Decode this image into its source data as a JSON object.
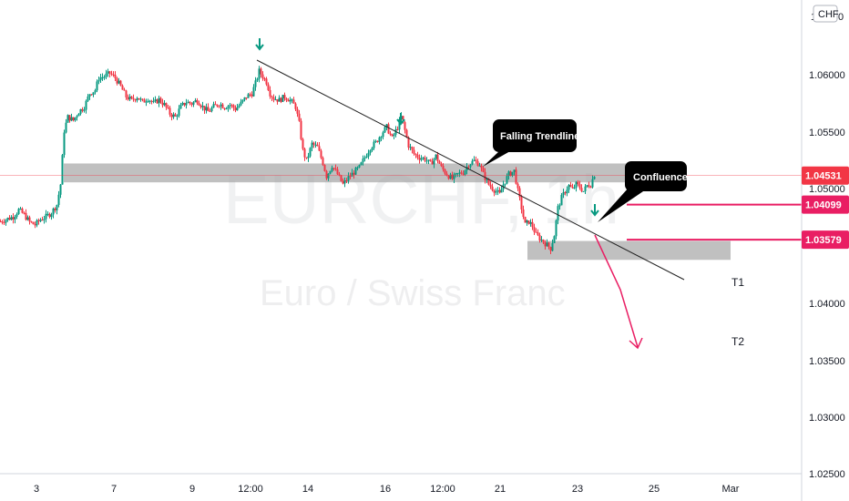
{
  "chart_data": {
    "type": "candlestick",
    "symbol_watermark": "EURCHF, 1h",
    "name_watermark": "Euro / Swiss Franc",
    "currency": "CHF",
    "price_axis_ticks": [
      "1.06000",
      "1.05500",
      "1.05000",
      "1.04000",
      "1.03500",
      "1.03000",
      "1.02500"
    ],
    "time_axis_ticks": [
      "3",
      "7",
      "9",
      "12:00",
      "14",
      "16",
      "12:00",
      "21",
      "23",
      "25",
      "Mar"
    ],
    "price_tags": [
      {
        "value": "1.04531",
        "color": "#f23645"
      },
      {
        "value": "1.04099",
        "color": "#e91e63"
      },
      {
        "value": "1.03579",
        "color": "#e91e63"
      }
    ],
    "annotations": {
      "trendline_label": "Falling Trendline",
      "confluence_label": "Confluence",
      "target1": "T1",
      "target2": "T2"
    },
    "ylim": [
      1.025,
      1.065
    ],
    "close_path": [
      [
        0,
        1.0385
      ],
      [
        6,
        1.0388
      ],
      [
        14,
        1.0392
      ],
      [
        20,
        1.0402
      ],
      [
        26,
        1.0395
      ],
      [
        32,
        1.0384
      ],
      [
        38,
        1.038
      ],
      [
        44,
        1.0388
      ],
      [
        50,
        1.0392
      ],
      [
        56,
        1.0398
      ],
      [
        62,
        1.041
      ],
      [
        66,
        1.044
      ],
      [
        70,
        1.052
      ],
      [
        74,
        1.054
      ],
      [
        80,
        1.0535
      ],
      [
        86,
        1.0548
      ],
      [
        92,
        1.0555
      ],
      [
        98,
        1.0575
      ],
      [
        104,
        1.058
      ],
      [
        108,
        1.0598
      ],
      [
        114,
        1.06
      ],
      [
        120,
        1.0605
      ],
      [
        126,
        1.0598
      ],
      [
        132,
        1.0585
      ],
      [
        138,
        1.057
      ],
      [
        144,
        1.0565
      ],
      [
        150,
        1.057
      ],
      [
        156,
        1.0562
      ],
      [
        162,
        1.0568
      ],
      [
        168,
        1.056
      ],
      [
        174,
        1.0566
      ],
      [
        180,
        1.0558
      ],
      [
        186,
        1.0545
      ],
      [
        192,
        1.054
      ],
      [
        198,
        1.0555
      ],
      [
        204,
        1.0562
      ],
      [
        210,
        1.056
      ],
      [
        216,
        1.0565
      ],
      [
        222,
        1.0555
      ],
      [
        228,
        1.0548
      ],
      [
        234,
        1.0555
      ],
      [
        240,
        1.056
      ],
      [
        246,
        1.0555
      ],
      [
        252,
        1.0558
      ],
      [
        258,
        1.0552
      ],
      [
        264,
        1.056
      ],
      [
        270,
        1.057
      ],
      [
        276,
        1.0575
      ],
      [
        280,
        1.059
      ],
      [
        284,
        1.0608
      ],
      [
        288,
        1.06
      ],
      [
        292,
        1.0592
      ],
      [
        296,
        1.0575
      ],
      [
        300,
        1.0568
      ],
      [
        306,
        1.0565
      ],
      [
        312,
        1.057
      ],
      [
        318,
        1.0565
      ],
      [
        324,
        1.0555
      ],
      [
        328,
        1.053
      ],
      [
        332,
        1.049
      ],
      [
        336,
        1.0475
      ],
      [
        342,
        1.05
      ],
      [
        348,
        1.0495
      ],
      [
        354,
        1.0472
      ],
      [
        358,
        1.0452
      ],
      [
        364,
        1.0468
      ],
      [
        370,
        1.0455
      ],
      [
        376,
        1.044
      ],
      [
        382,
        1.045
      ],
      [
        388,
        1.0458
      ],
      [
        394,
        1.0465
      ],
      [
        400,
        1.048
      ],
      [
        406,
        1.0495
      ],
      [
        412,
        1.0502
      ],
      [
        418,
        1.0515
      ],
      [
        424,
        1.0525
      ],
      [
        430,
        1.0508
      ],
      [
        436,
        1.0525
      ],
      [
        440,
        1.054
      ],
      [
        444,
        1.052
      ],
      [
        448,
        1.0498
      ],
      [
        454,
        1.0485
      ],
      [
        460,
        1.048
      ],
      [
        466,
        1.0478
      ],
      [
        472,
        1.047
      ],
      [
        478,
        1.0482
      ],
      [
        484,
        1.0465
      ],
      [
        490,
        1.0455
      ],
      [
        496,
        1.0448
      ],
      [
        502,
        1.0455
      ],
      [
        508,
        1.0458
      ],
      [
        514,
        1.047
      ],
      [
        520,
        1.0475
      ],
      [
        526,
        1.047
      ],
      [
        530,
        1.0455
      ],
      [
        536,
        1.044
      ],
      [
        542,
        1.0432
      ],
      [
        548,
        1.0425
      ],
      [
        552,
        1.044
      ],
      [
        558,
        1.0455
      ],
      [
        564,
        1.046
      ],
      [
        568,
        1.043
      ],
      [
        572,
        1.0405
      ],
      [
        576,
        1.038
      ],
      [
        580,
        1.0385
      ],
      [
        584,
        1.0378
      ],
      [
        588,
        1.0365
      ],
      [
        592,
        1.036
      ],
      [
        596,
        1.0355
      ],
      [
        600,
        1.035
      ],
      [
        604,
        1.0345
      ],
      [
        608,
        1.0365
      ],
      [
        612,
        1.0405
      ],
      [
        616,
        1.042
      ],
      [
        620,
        1.043
      ],
      [
        624,
        1.0438
      ],
      [
        628,
        1.0432
      ],
      [
        632,
        1.044
      ],
      [
        636,
        1.0436
      ],
      [
        640,
        1.043
      ],
      [
        644,
        1.0438
      ],
      [
        648,
        1.044
      ],
      [
        652,
        1.0455
      ]
    ]
  }
}
